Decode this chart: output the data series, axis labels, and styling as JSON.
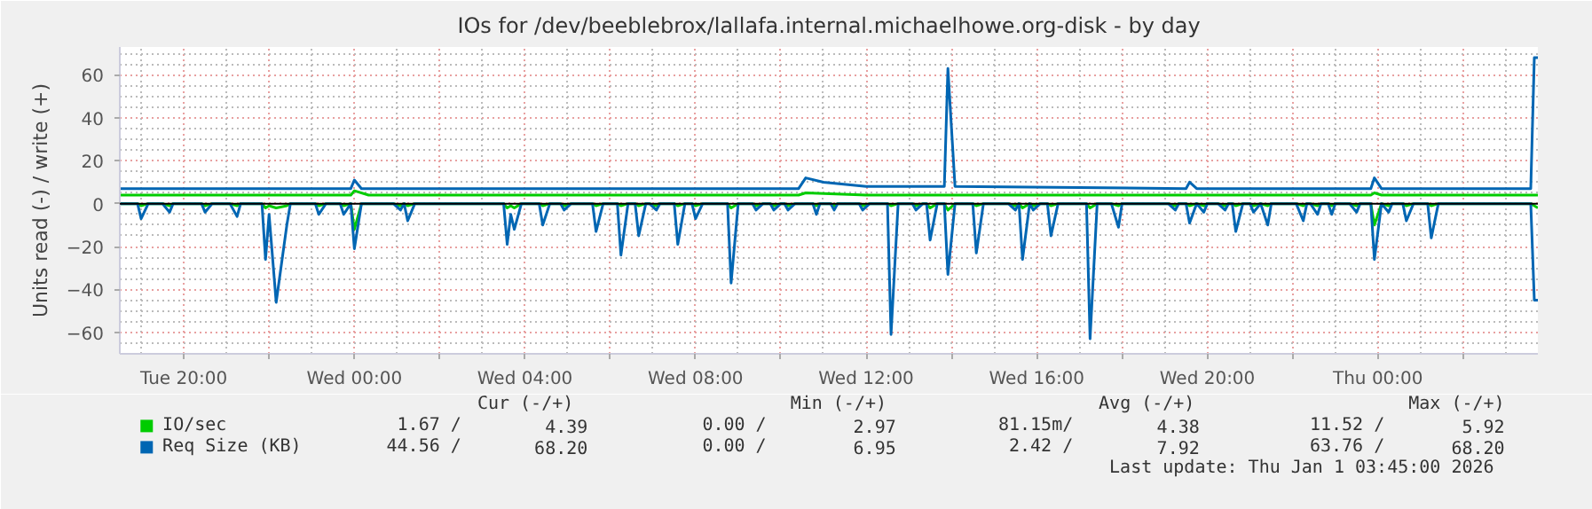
{
  "chart_data": {
    "type": "line",
    "title": "IOs for /dev/beeblebrox/lallafa.internal.michaelhowe.org-disk - by day",
    "ylabel": "Units read (-) / write (+)",
    "xlim": [
      "2025-12-30T18:30",
      "2026-01-01T03:45"
    ],
    "xticks": [
      {
        "value": "2025-12-30T20:00",
        "label": "Tue 20:00"
      },
      {
        "value": "2025-12-30T22:00",
        "label": null
      },
      {
        "value": "2025-12-31T00:00",
        "label": "Wed 00:00"
      },
      {
        "value": "2025-12-31T02:00",
        "label": null
      },
      {
        "value": "2025-12-31T04:00",
        "label": "Wed 04:00"
      },
      {
        "value": "2025-12-31T06:00",
        "label": null
      },
      {
        "value": "2025-12-31T08:00",
        "label": "Wed 08:00"
      },
      {
        "value": "2025-12-31T10:00",
        "label": null
      },
      {
        "value": "2025-12-31T12:00",
        "label": "Wed 12:00"
      },
      {
        "value": "2025-12-31T14:00",
        "label": null
      },
      {
        "value": "2025-12-31T16:00",
        "label": "Wed 16:00"
      },
      {
        "value": "2025-12-31T18:00",
        "label": null
      },
      {
        "value": "2025-12-31T20:00",
        "label": "Wed 20:00"
      },
      {
        "value": "2025-12-31T22:00",
        "label": null
      },
      {
        "value": "2026-01-01T00:00",
        "label": "Thu 00:00"
      },
      {
        "value": "2026-01-01T02:00",
        "label": null
      }
    ],
    "ylim": [
      -70,
      73
    ],
    "yticks": [
      -60,
      -40,
      -20,
      0,
      20,
      40,
      60
    ],
    "grid": true,
    "legend": "bottom",
    "marker": "none",
    "line_style": "solid",
    "ref_lines": [
      {
        "axis": "y",
        "value": 0,
        "color": "#000000"
      }
    ],
    "x": [
      "2025-12-30T18:30",
      "2025-12-30T18:55",
      "2025-12-30T19:00",
      "2025-12-30T19:10",
      "2025-12-30T19:30",
      "2025-12-30T19:40",
      "2025-12-30T19:45",
      "2025-12-30T20:25",
      "2025-12-30T20:30",
      "2025-12-30T20:40",
      "2025-12-30T21:05",
      "2025-12-30T21:15",
      "2025-12-30T21:20",
      "2025-12-30T21:50",
      "2025-12-30T21:55",
      "2025-12-30T22:00",
      "2025-12-30T22:10",
      "2025-12-30T22:25",
      "2025-12-30T22:30",
      "2025-12-30T23:05",
      "2025-12-30T23:10",
      "2025-12-30T23:20",
      "2025-12-30T23:40",
      "2025-12-30T23:45",
      "2025-12-30T23:55",
      "2025-12-31T00:00",
      "2025-12-31T00:10",
      "2025-12-31T00:55",
      "2025-12-31T01:05",
      "2025-12-31T01:10",
      "2025-12-31T01:15",
      "2025-12-31T01:25",
      "2025-12-31T03:30",
      "2025-12-31T03:35",
      "2025-12-31T03:40",
      "2025-12-31T03:45",
      "2025-12-31T03:55",
      "2025-12-31T04:20",
      "2025-12-31T04:25",
      "2025-12-31T04:35",
      "2025-12-31T04:50",
      "2025-12-31T04:55",
      "2025-12-31T05:05",
      "2025-12-31T05:35",
      "2025-12-31T05:40",
      "2025-12-31T05:50",
      "2025-12-31T06:10",
      "2025-12-31T06:15",
      "2025-12-31T06:25",
      "2025-12-31T06:35",
      "2025-12-31T06:40",
      "2025-12-31T06:50",
      "2025-12-31T06:55",
      "2025-12-31T07:05",
      "2025-12-31T07:10",
      "2025-12-31T07:30",
      "2025-12-31T07:35",
      "2025-12-31T07:45",
      "2025-12-31T07:55",
      "2025-12-31T08:00",
      "2025-12-31T08:10",
      "2025-12-31T08:45",
      "2025-12-31T08:50",
      "2025-12-31T09:00",
      "2025-12-31T09:20",
      "2025-12-31T09:25",
      "2025-12-31T09:35",
      "2025-12-31T09:45",
      "2025-12-31T09:50",
      "2025-12-31T10:00",
      "2025-12-31T10:05",
      "2025-12-31T10:10",
      "2025-12-31T10:20",
      "2025-12-31T10:45",
      "2025-12-31T10:50",
      "2025-12-31T10:55",
      "2025-12-31T11:10",
      "2025-12-31T11:15",
      "2025-12-31T11:20",
      "2025-12-31T11:50",
      "2025-12-31T11:55",
      "2025-12-31T12:05",
      "2025-12-31T12:30",
      "2025-12-31T12:35",
      "2025-12-31T12:45",
      "2025-12-31T13:05",
      "2025-12-31T13:10",
      "2025-12-31T13:20",
      "2025-12-31T13:25",
      "2025-12-31T13:30",
      "2025-12-31T13:40",
      "2025-12-31T13:50",
      "2025-12-31T13:55",
      "2025-12-31T14:05",
      "2025-12-31T14:30",
      "2025-12-31T14:35",
      "2025-12-31T14:45",
      "2025-12-31T15:20",
      "2025-12-31T15:30",
      "2025-12-31T15:35",
      "2025-12-31T15:40",
      "2025-12-31T15:50",
      "2025-12-31T15:55",
      "2025-12-31T16:05",
      "2025-12-31T16:15",
      "2025-12-31T16:20",
      "2025-12-31T16:30",
      "2025-12-31T17:10",
      "2025-12-31T17:15",
      "2025-12-31T17:25",
      "2025-12-31T17:45",
      "2025-12-31T17:55",
      "2025-12-31T18:00",
      "2025-12-31T19:05",
      "2025-12-31T19:15",
      "2025-12-31T19:20",
      "2025-12-31T19:30",
      "2025-12-31T19:35",
      "2025-12-31T19:45",
      "2025-12-31T19:55",
      "2025-12-31T20:00",
      "2025-12-31T20:15",
      "2025-12-31T20:25",
      "2025-12-31T20:30",
      "2025-12-31T20:35",
      "2025-12-31T20:40",
      "2025-12-31T20:50",
      "2025-12-31T21:00",
      "2025-12-31T21:05",
      "2025-12-31T21:15",
      "2025-12-31T21:25",
      "2025-12-31T21:30",
      "2025-12-31T22:05",
      "2025-12-31T22:15",
      "2025-12-31T22:20",
      "2025-12-31T22:25",
      "2025-12-31T22:35",
      "2025-12-31T22:40",
      "2025-12-31T22:50",
      "2025-12-31T22:55",
      "2025-12-31T23:00",
      "2025-12-31T23:20",
      "2025-12-31T23:30",
      "2025-12-31T23:35",
      "2025-12-31T23:50",
      "2025-12-31T23:55",
      "2026-01-01T00:05",
      "2026-01-01T00:15",
      "2026-01-01T00:20",
      "2026-01-01T00:35",
      "2026-01-01T00:40",
      "2026-01-01T00:50",
      "2026-01-01T01:10",
      "2026-01-01T01:15",
      "2026-01-01T01:25",
      "2026-01-01T03:35",
      "2026-01-01T03:40",
      "2026-01-01T03:45"
    ],
    "series": [
      {
        "name": "IO/sec",
        "color": "#00cc00",
        "x": [
          "2025-12-30T18:30",
          "2025-12-30T23:55",
          "2025-12-31T00:00",
          "2025-12-31T00:20",
          "2025-12-31T10:25",
          "2025-12-31T10:35",
          "2025-12-31T12:00",
          "2025-12-31T23:50",
          "2025-12-31T23:55",
          "2026-01-01T00:05",
          "2026-01-01T03:35",
          "2026-01-01T03:45"
        ],
        "values": [
          4,
          4,
          6,
          4,
          4,
          5,
          4,
          4,
          5,
          4,
          4,
          4
        ]
      },
      {
        "color": "#00cc00",
        "values": [
          0,
          0,
          -1,
          0,
          0,
          -1,
          0,
          0,
          -1,
          0,
          0,
          -1,
          0,
          0,
          -2,
          -1,
          -2,
          -1,
          0,
          0,
          -1,
          0,
          0,
          -1,
          0,
          -12,
          0,
          0,
          -1,
          0,
          -1,
          0,
          0,
          -2,
          -1,
          -2,
          0,
          0,
          -1,
          0,
          0,
          -1,
          0,
          0,
          -1,
          0,
          0,
          -1,
          0,
          0,
          -1,
          0,
          0,
          -1,
          0,
          0,
          -1,
          0,
          0,
          -1,
          0,
          0,
          -2,
          0,
          0,
          -1,
          0,
          0,
          -1,
          0,
          0,
          -1,
          0,
          0,
          -1,
          0,
          0,
          -1,
          0,
          0,
          -1,
          0,
          0,
          -1,
          0,
          0,
          -1,
          0,
          0,
          -2,
          0,
          0,
          -3,
          0,
          0,
          -1,
          0,
          0,
          -1,
          0,
          -2,
          0,
          -1,
          0,
          0,
          -1,
          0,
          0,
          -2,
          0,
          0,
          -1,
          0,
          0,
          -1,
          0,
          0,
          -1,
          0,
          -1,
          0,
          0,
          -1,
          0,
          0,
          -1,
          0,
          0,
          -1,
          0,
          -1,
          0,
          0,
          -1,
          0,
          0,
          -1,
          0,
          0,
          -1,
          0,
          0,
          -1,
          0,
          0,
          -10,
          0,
          -1,
          0,
          0,
          -1,
          0,
          0,
          -1,
          0,
          0,
          -1,
          -2
        ]
      },
      {
        "name": "Req Size (KB)",
        "color": "#0066b3",
        "x": [
          "2025-12-30T18:30",
          "2025-12-30T23:55",
          "2025-12-31T00:00",
          "2025-12-31T00:10",
          "2025-12-31T10:25",
          "2025-12-31T10:35",
          "2025-12-31T11:00",
          "2025-12-31T12:00",
          "2025-12-31T13:50",
          "2025-12-31T13:55",
          "2025-12-31T14:05",
          "2025-12-31T19:30",
          "2025-12-31T19:35",
          "2025-12-31T19:45",
          "2025-12-31T23:50",
          "2025-12-31T23:55",
          "2026-01-01T00:05",
          "2026-01-01T03:35",
          "2026-01-01T03:40",
          "2026-01-01T03:45"
        ],
        "values": [
          7,
          7,
          11,
          7,
          7,
          12,
          10,
          8,
          8,
          63,
          8,
          7,
          10,
          7,
          7,
          12,
          7,
          7,
          68,
          68
        ]
      },
      {
        "color": "#0066b3",
        "values": [
          0,
          0,
          -7,
          0,
          0,
          -4,
          0,
          0,
          -4,
          0,
          0,
          -6,
          0,
          0,
          -26,
          -5,
          -46,
          -10,
          0,
          0,
          -5,
          0,
          0,
          -5,
          0,
          -21,
          0,
          0,
          -3,
          0,
          -8,
          0,
          0,
          -19,
          -5,
          -12,
          0,
          0,
          -10,
          0,
          0,
          -3,
          0,
          0,
          -13,
          0,
          0,
          -24,
          0,
          0,
          -15,
          0,
          0,
          -3,
          0,
          0,
          -19,
          0,
          0,
          -7,
          0,
          0,
          -37,
          0,
          0,
          -3,
          0,
          0,
          -3,
          0,
          0,
          -3,
          0,
          0,
          -5,
          0,
          0,
          -3,
          0,
          0,
          -3,
          0,
          0,
          -61,
          0,
          0,
          -3,
          0,
          0,
          -17,
          0,
          0,
          -33,
          0,
          0,
          -23,
          0,
          0,
          -3,
          0,
          -26,
          0,
          -3,
          0,
          0,
          -15,
          0,
          0,
          -63,
          0,
          0,
          -11,
          0,
          0,
          -3,
          0,
          0,
          -9,
          0,
          -4,
          0,
          0,
          -3,
          0,
          0,
          -13,
          0,
          0,
          -4,
          0,
          -10,
          0,
          0,
          -8,
          0,
          0,
          -5,
          0,
          0,
          -5,
          0,
          0,
          -4,
          0,
          0,
          -26,
          0,
          -4,
          0,
          0,
          -8,
          0,
          0,
          -16,
          0,
          0,
          -45,
          -45
        ]
      }
    ],
    "annotations": [
      "Cur (-/+)",
      "Min (-/+)",
      "Avg (-/+)",
      "Max (-/+)",
      "1.67 /",
      "4.39",
      "0.00 /",
      "2.97",
      "81.15m/",
      "4.38",
      "11.52 /",
      "5.92",
      "44.56 /",
      "68.20",
      "0.00 /",
      "6.95",
      "2.42 /",
      "7.92",
      "63.76 /",
      "68.20",
      "Last update: Thu Jan  1 03:45:00 2026"
    ]
  }
}
